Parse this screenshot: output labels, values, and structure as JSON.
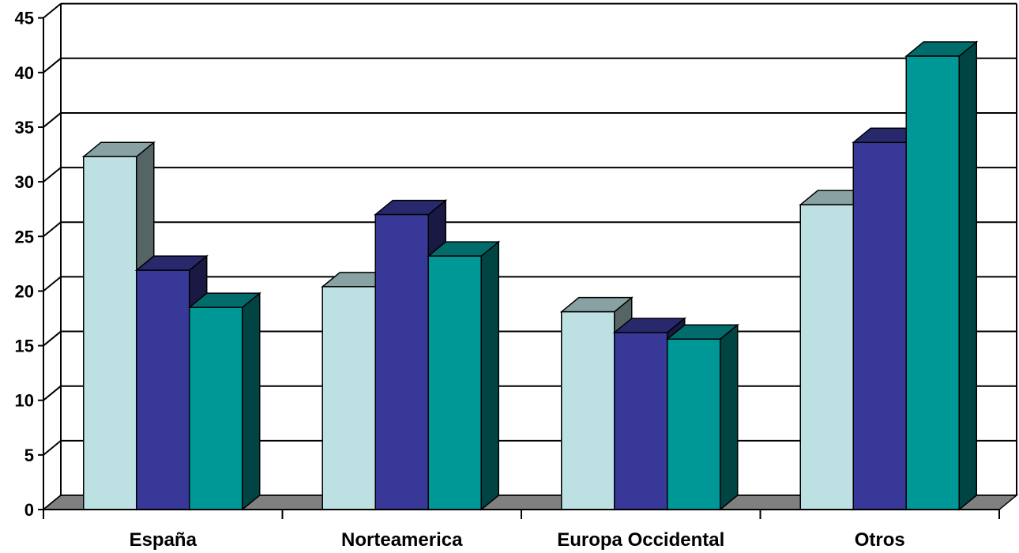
{
  "chart_data": {
    "type": "bar",
    "style": "3d-clustered-column",
    "categories": [
      "España",
      "Norteamerica",
      "Europa Occidental",
      "Otros"
    ],
    "series": [
      {
        "values": [
          32.3,
          20.4,
          18.1,
          27.9
        ],
        "color": "#bde0e2"
      },
      {
        "values": [
          21.9,
          27.0,
          16.2,
          33.6
        ],
        "color": "#373897"
      },
      {
        "values": [
          18.5,
          23.2,
          15.6,
          41.5
        ],
        "color": "#009896"
      }
    ],
    "ylim": [
      0,
      45
    ],
    "yticks": [
      "0",
      "5",
      "10",
      "15",
      "20",
      "25",
      "30",
      "35",
      "40",
      "45"
    ],
    "grid": true,
    "legend": "none",
    "floor_color": "#808080"
  }
}
